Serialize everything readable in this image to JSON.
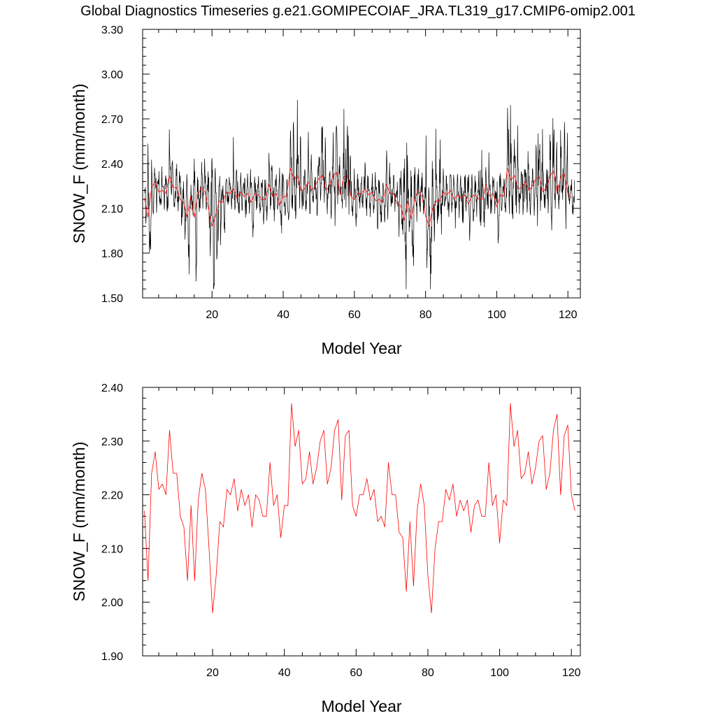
{
  "title": "Global Diagnostics Timeseries g.e21.GOMIPECOIAF_JRA.TL319_g17.CMIP6-omip2.001",
  "colors": {
    "monthly": "#000000",
    "annual": "#ff0000"
  },
  "chart_data": [
    {
      "type": "line",
      "xlabel": "Model Year",
      "ylabel": "SNOW_F (mm/month)",
      "xlim": [
        0.5,
        123.5
      ],
      "ylim": [
        1.5,
        3.3
      ],
      "xticks": [
        20,
        40,
        60,
        80,
        100,
        120
      ],
      "yticks": [
        1.5,
        1.8,
        2.1,
        2.4,
        2.7,
        3.0,
        3.3
      ],
      "ytick_labels": [
        "1.50",
        "1.80",
        "2.10",
        "2.40",
        "2.70",
        "3.00",
        "3.30"
      ],
      "series": [
        {
          "color": "#000000",
          "kind": "monthly",
          "x_start": 1,
          "x_step": 0.0833,
          "amplitude_by_year_reference": "annual"
        },
        {
          "color": "#ff0000",
          "kind": "annual",
          "values_ref": "annual_means"
        }
      ]
    },
    {
      "type": "line",
      "xlabel": "Model Year",
      "ylabel": "SNOW_F (mm/month)",
      "xlim": [
        0.5,
        122.5
      ],
      "ylim": [
        1.9,
        2.4
      ],
      "xticks": [
        20,
        40,
        60,
        80,
        100,
        120
      ],
      "yticks": [
        1.9,
        2.0,
        2.1,
        2.2,
        2.3,
        2.4
      ],
      "ytick_labels": [
        "1.90",
        "2.00",
        "2.10",
        "2.20",
        "2.30",
        "2.40"
      ],
      "series": [
        {
          "color": "#ff0000",
          "kind": "annual",
          "values_ref": "annual_means"
        }
      ]
    }
  ],
  "annual_means": {
    "x_start": 1,
    "values": [
      2.17,
      2.04,
      2.24,
      2.28,
      2.21,
      2.22,
      2.2,
      2.32,
      2.24,
      2.24,
      2.16,
      2.14,
      2.04,
      2.18,
      2.04,
      2.19,
      2.24,
      2.21,
      2.1,
      1.98,
      2.05,
      2.15,
      2.14,
      2.21,
      2.2,
      2.23,
      2.17,
      2.21,
      2.18,
      2.2,
      2.14,
      2.2,
      2.19,
      2.16,
      2.16,
      2.26,
      2.18,
      2.2,
      2.12,
      2.18,
      2.18,
      2.37,
      2.29,
      2.32,
      2.22,
      2.23,
      2.28,
      2.22,
      2.25,
      2.3,
      2.32,
      2.22,
      2.25,
      2.32,
      2.34,
      2.19,
      2.31,
      2.32,
      2.18,
      2.16,
      2.2,
      2.2,
      2.23,
      2.19,
      2.21,
      2.15,
      2.16,
      2.14,
      2.26,
      2.2,
      2.2,
      2.13,
      2.12,
      2.02,
      2.15,
      2.03,
      2.17,
      2.22,
      2.18,
      2.05,
      1.98,
      2.1,
      2.15,
      2.15,
      2.21,
      2.19,
      2.22,
      2.16,
      2.19,
      2.17,
      2.19,
      2.13,
      2.18,
      2.19,
      2.16,
      2.16,
      2.26,
      2.18,
      2.2,
      2.11,
      2.19,
      2.18,
      2.37,
      2.29,
      2.32,
      2.23,
      2.24,
      2.28,
      2.22,
      2.25,
      2.3,
      2.31,
      2.21,
      2.24,
      2.32,
      2.35,
      2.2,
      2.31,
      2.33,
      2.2,
      2.17
    ]
  }
}
